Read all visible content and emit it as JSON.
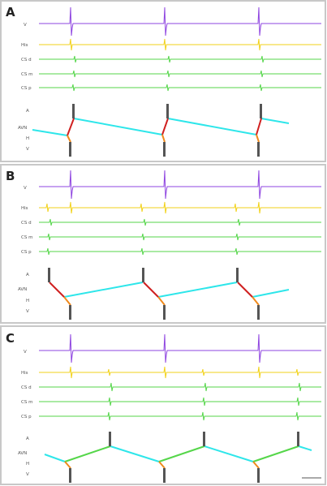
{
  "colors": {
    "V": "#8e44e0",
    "His": "#f2d21a",
    "CS": "#55d64a",
    "ladder_block": "#555555",
    "conduction_anterograde": "#2ee6ea",
    "conduction_retrograde_red": "#d02020",
    "conduction_retrograde_green": "#55d64a",
    "his_ventricle_segment": "#f08a1c"
  },
  "panels": [
    {
      "letter": "A",
      "channels": [
        "V",
        "His",
        "CS d",
        "CS m",
        "CS p"
      ],
      "ladder_labels": [
        "A",
        "AVN",
        "H",
        "V"
      ]
    },
    {
      "letter": "B",
      "channels": [
        "V",
        "His",
        "CS d",
        "CS m",
        "CS p"
      ],
      "ladder_labels": [
        "A",
        "AVN",
        "H",
        "V"
      ]
    },
    {
      "letter": "C",
      "channels": [
        "V",
        "His",
        "CS d",
        "CS m",
        "CS p"
      ],
      "ladder_labels": [
        "A",
        "AVN",
        "H",
        "V"
      ]
    }
  ]
}
